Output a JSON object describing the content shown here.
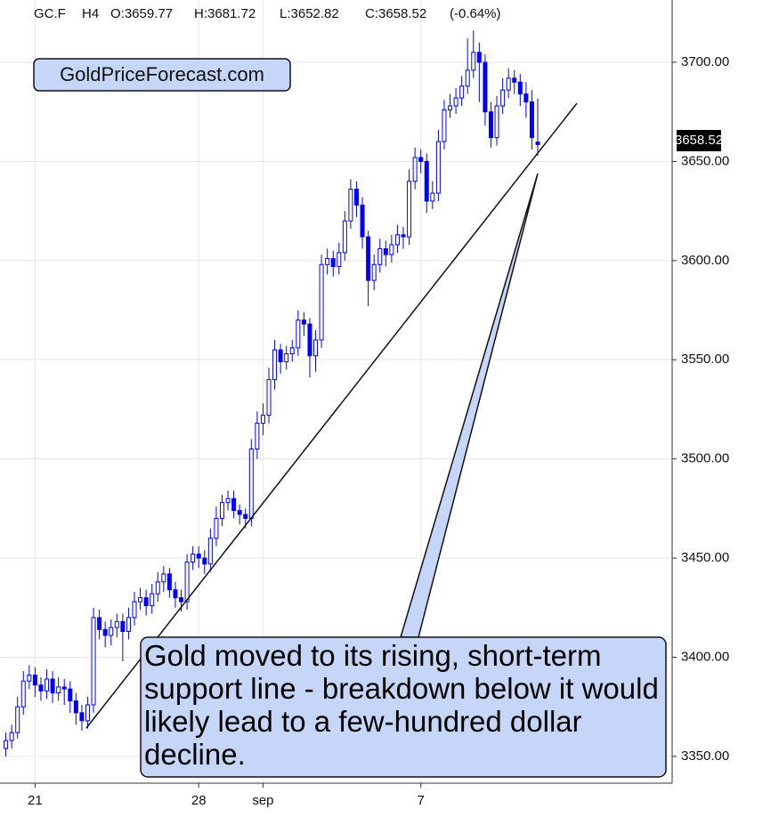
{
  "chart_data": {
    "type": "candlestick",
    "header": {
      "symbol": "GC.F",
      "interval": "H4",
      "open": "O:3659.77",
      "high": "H:3681.72",
      "low": "L:3652.82",
      "close": "C:3658.52",
      "change": "(-0.64%)"
    },
    "watermark_label": "GoldPriceForecast.com",
    "annotation": "Gold moved to its rising, short-term support line - breakdown below it would likely lead to a few-hundred dollar decline.",
    "last_price_label": "3658.52",
    "color": "#0000ff",
    "grid": true,
    "xlim": [
      -1,
      114
    ],
    "xticks": [
      {
        "value": 5,
        "label": "21"
      },
      {
        "value": 33,
        "label": "28"
      },
      {
        "value": 44,
        "label": "sep"
      },
      {
        "value": 71,
        "label": "7"
      }
    ],
    "ylim": [
      3336.5,
      3731.4
    ],
    "yticks": [
      {
        "value": 3350,
        "label": "3350.00"
      },
      {
        "value": 3400,
        "label": "3400.00"
      },
      {
        "value": 3450,
        "label": "3450.00"
      },
      {
        "value": 3500,
        "label": "3500.00"
      },
      {
        "value": 3550,
        "label": "3550.00"
      },
      {
        "value": 3600,
        "label": "3600.00"
      },
      {
        "value": 3650,
        "label": "3650.00"
      },
      {
        "value": 3700,
        "label": "3700.00"
      }
    ],
    "open": [
      3354,
      3358,
      3362,
      3375,
      3388,
      3391,
      3386,
      3383,
      3389,
      3382,
      3385,
      3384,
      3378,
      3372,
      3368,
      3376,
      3420,
      3414,
      3411,
      3415,
      3418,
      3413,
      3420,
      3428,
      3430,
      3426,
      3432,
      3438,
      3442,
      3434,
      3430,
      3428,
      3448,
      3452,
      3450,
      3447,
      3460,
      3470,
      3478,
      3480,
      3474,
      3472,
      3470,
      3505,
      3518,
      3522,
      3540,
      3555,
      3549,
      3553,
      3556,
      3570,
      3568,
      3552,
      3560,
      3598,
      3601,
      3597,
      3604,
      3620,
      3636,
      3628,
      3612,
      3590,
      3598,
      3606,
      3603,
      3608,
      3613,
      3612,
      3640,
      3652,
      3650,
      3630,
      3634,
      3660,
      3676,
      3678,
      3682,
      3688,
      3696,
      3705,
      3700,
      3675,
      3662,
      3678,
      3686,
      3692,
      3690,
      3684,
      3680,
      3659.77
    ],
    "high": [
      3362,
      3366,
      3380,
      3393,
      3396,
      3395,
      3390,
      3394,
      3393,
      3390,
      3389,
      3388,
      3382,
      3376,
      3380,
      3425,
      3424,
      3418,
      3419,
      3422,
      3422,
      3425,
      3433,
      3435,
      3434,
      3437,
      3443,
      3446,
      3445,
      3438,
      3434,
      3452,
      3456,
      3456,
      3454,
      3465,
      3476,
      3482,
      3484,
      3484,
      3477,
      3475,
      3510,
      3524,
      3528,
      3546,
      3560,
      3558,
      3557,
      3560,
      3575,
      3574,
      3571,
      3565,
      3603,
      3606,
      3605,
      3609,
      3625,
      3641,
      3640,
      3632,
      3615,
      3603,
      3611,
      3610,
      3613,
      3618,
      3617,
      3646,
      3657,
      3656,
      3654,
      3640,
      3666,
      3681,
      3684,
      3687,
      3693,
      3712,
      3716,
      3710,
      3704,
      3680,
      3683,
      3692,
      3697,
      3696,
      3694,
      3690,
      3686,
      3681.72
    ],
    "low": [
      3350,
      3354,
      3359,
      3371,
      3384,
      3380,
      3378,
      3379,
      3377,
      3378,
      3376,
      3372,
      3366,
      3363,
      3364,
      3372,
      3409,
      3405,
      3406,
      3410,
      3398,
      3409,
      3416,
      3424,
      3421,
      3422,
      3428,
      3433,
      3430,
      3425,
      3423,
      3424,
      3444,
      3445,
      3442,
      3443,
      3456,
      3466,
      3474,
      3470,
      3467,
      3465,
      3466,
      3500,
      3512,
      3518,
      3535,
      3543,
      3545,
      3549,
      3552,
      3562,
      3541,
      3544,
      3556,
      3593,
      3592,
      3593,
      3600,
      3616,
      3622,
      3606,
      3577,
      3585,
      3594,
      3597,
      3599,
      3604,
      3606,
      3608,
      3636,
      3644,
      3624,
      3626,
      3630,
      3656,
      3672,
      3674,
      3678,
      3684,
      3692,
      3680,
      3668,
      3657,
      3658,
      3674,
      3682,
      3684,
      3678,
      3672,
      3656,
      3652.82
    ],
    "close": [
      3358,
      3362,
      3375,
      3388,
      3391,
      3386,
      3383,
      3389,
      3382,
      3385,
      3384,
      3378,
      3372,
      3368,
      3376,
      3420,
      3414,
      3411,
      3415,
      3418,
      3413,
      3420,
      3428,
      3430,
      3426,
      3432,
      3438,
      3442,
      3434,
      3430,
      3428,
      3448,
      3452,
      3450,
      3447,
      3460,
      3470,
      3478,
      3480,
      3474,
      3472,
      3470,
      3505,
      3518,
      3522,
      3540,
      3555,
      3549,
      3553,
      3556,
      3570,
      3568,
      3552,
      3560,
      3598,
      3601,
      3597,
      3604,
      3620,
      3636,
      3628,
      3612,
      3590,
      3598,
      3606,
      3603,
      3608,
      3613,
      3612,
      3640,
      3652,
      3650,
      3630,
      3634,
      3660,
      3676,
      3678,
      3682,
      3688,
      3696,
      3705,
      3700,
      3675,
      3662,
      3678,
      3686,
      3692,
      3690,
      3684,
      3680,
      3662,
      3658.52
    ]
  }
}
